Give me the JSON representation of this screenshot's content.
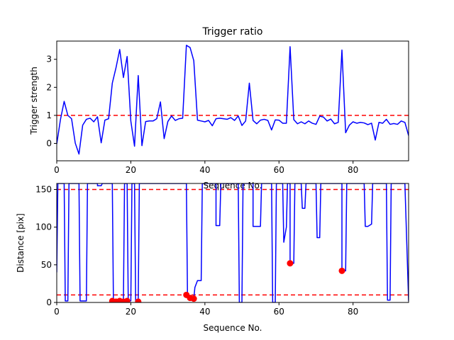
{
  "chart_data": [
    {
      "type": "line",
      "title": "Trigger ratio",
      "xlabel": "Sequence No.",
      "ylabel": "Trigger strength",
      "xlim": [
        0,
        95
      ],
      "ylim": [
        -0.62,
        3.65
      ],
      "xticks": [
        0,
        20,
        40,
        60,
        80
      ],
      "yticks": [
        0,
        1,
        2,
        3
      ],
      "threshold_lines": [
        {
          "y": 1.0,
          "color": "#ff0000",
          "style": "dashed"
        }
      ],
      "series": [
        {
          "color": "#0000ff",
          "points": [
            [
              0,
              -0.02
            ],
            [
              1,
              0.85
            ],
            [
              2,
              1.5
            ],
            [
              3,
              1.0
            ],
            [
              4,
              0.88
            ],
            [
              5,
              0.01
            ],
            [
              6,
              -0.38
            ],
            [
              7,
              0.65
            ],
            [
              8,
              0.86
            ],
            [
              9,
              0.9
            ],
            [
              10,
              0.77
            ],
            [
              11,
              0.95
            ],
            [
              12,
              0.02
            ],
            [
              13,
              0.83
            ],
            [
              14,
              0.88
            ],
            [
              15,
              2.15
            ],
            [
              16,
              2.7
            ],
            [
              17,
              3.35
            ],
            [
              18,
              2.35
            ],
            [
              19,
              3.1
            ],
            [
              20,
              0.8
            ],
            [
              21,
              -0.1
            ],
            [
              22,
              2.42
            ],
            [
              23,
              -0.08
            ],
            [
              24,
              0.78
            ],
            [
              25,
              0.8
            ],
            [
              26,
              0.8
            ],
            [
              27,
              0.88
            ],
            [
              28,
              1.48
            ],
            [
              29,
              0.17
            ],
            [
              30,
              0.78
            ],
            [
              31,
              0.98
            ],
            [
              32,
              0.82
            ],
            [
              33,
              0.88
            ],
            [
              34,
              0.9
            ],
            [
              35,
              3.5
            ],
            [
              36,
              3.42
            ],
            [
              37,
              2.95
            ],
            [
              38,
              0.83
            ],
            [
              39,
              0.8
            ],
            [
              40,
              0.77
            ],
            [
              41,
              0.82
            ],
            [
              42,
              0.63
            ],
            [
              43,
              0.88
            ],
            [
              44,
              0.9
            ],
            [
              45,
              0.88
            ],
            [
              46,
              0.86
            ],
            [
              47,
              0.92
            ],
            [
              48,
              0.82
            ],
            [
              49,
              0.98
            ],
            [
              50,
              0.64
            ],
            [
              51,
              0.8
            ],
            [
              52,
              2.15
            ],
            [
              53,
              0.82
            ],
            [
              54,
              0.7
            ],
            [
              55,
              0.83
            ],
            [
              56,
              0.86
            ],
            [
              57,
              0.82
            ],
            [
              58,
              0.48
            ],
            [
              59,
              0.84
            ],
            [
              60,
              0.83
            ],
            [
              61,
              0.72
            ],
            [
              62,
              0.72
            ],
            [
              63,
              3.45
            ],
            [
              64,
              0.85
            ],
            [
              65,
              0.7
            ],
            [
              66,
              0.77
            ],
            [
              67,
              0.7
            ],
            [
              68,
              0.8
            ],
            [
              69,
              0.72
            ],
            [
              70,
              0.68
            ],
            [
              71,
              0.97
            ],
            [
              72,
              0.94
            ],
            [
              73,
              0.8
            ],
            [
              74,
              0.87
            ],
            [
              75,
              0.7
            ],
            [
              76,
              0.75
            ],
            [
              77,
              3.33
            ],
            [
              78,
              0.38
            ],
            [
              79,
              0.65
            ],
            [
              80,
              0.77
            ],
            [
              81,
              0.72
            ],
            [
              82,
              0.75
            ],
            [
              83,
              0.73
            ],
            [
              84,
              0.67
            ],
            [
              85,
              0.72
            ],
            [
              86,
              0.12
            ],
            [
              87,
              0.75
            ],
            [
              88,
              0.72
            ],
            [
              89,
              0.86
            ],
            [
              90,
              0.68
            ],
            [
              91,
              0.71
            ],
            [
              92,
              0.68
            ],
            [
              93,
              0.8
            ],
            [
              94,
              0.75
            ],
            [
              95,
              0.28
            ]
          ]
        }
      ]
    },
    {
      "type": "line",
      "title": "",
      "xlabel": "Sequence No.",
      "ylabel": "Distance [pix]",
      "xlim": [
        0,
        95
      ],
      "ylim": [
        0,
        158
      ],
      "xticks": [
        0,
        20,
        40,
        60,
        80
      ],
      "yticks": [
        0,
        50,
        100,
        150
      ],
      "threshold_lines": [
        {
          "y": 150,
          "color": "#ff0000",
          "style": "dashed"
        },
        {
          "y": 10,
          "color": "#ff0000",
          "style": "dashed"
        }
      ],
      "series": [
        {
          "color": "#0000ff",
          "points": [
            [
              0,
              40
            ],
            [
              0.3,
              158
            ],
            [
              1,
              158
            ],
            [
              2,
              158
            ],
            [
              2.3,
              2
            ],
            [
              3,
              2
            ],
            [
              3.3,
              158
            ],
            [
              4,
              158
            ],
            [
              5,
              158
            ],
            [
              6,
              158
            ],
            [
              6.3,
              2
            ],
            [
              7,
              2
            ],
            [
              8,
              2
            ],
            [
              8.3,
              158
            ],
            [
              9,
              158
            ],
            [
              10,
              158
            ],
            [
              11,
              158
            ],
            [
              11,
              155
            ],
            [
              12,
              155
            ],
            [
              12.3,
              158
            ],
            [
              13,
              158
            ],
            [
              14,
              158
            ],
            [
              15,
              158
            ],
            [
              15.3,
              2
            ],
            [
              16,
              2
            ],
            [
              17,
              2
            ],
            [
              18,
              2
            ],
            [
              18.3,
              158
            ],
            [
              19,
              158
            ],
            [
              19.3,
              2
            ],
            [
              20,
              2
            ],
            [
              20.3,
              158
            ],
            [
              21,
              158
            ],
            [
              21.3,
              2
            ],
            [
              22,
              2
            ],
            [
              22.3,
              158
            ],
            [
              23,
              158
            ],
            [
              24,
              158
            ],
            [
              25,
              158
            ],
            [
              26,
              158
            ],
            [
              27,
              158
            ],
            [
              28,
              158
            ],
            [
              29,
              158
            ],
            [
              30,
              158
            ],
            [
              31,
              158
            ],
            [
              32,
              158
            ],
            [
              33,
              158
            ],
            [
              34,
              158
            ],
            [
              35,
              158
            ],
            [
              35.3,
              10
            ],
            [
              36,
              5
            ],
            [
              37,
              5
            ],
            [
              37.3,
              20
            ],
            [
              38,
              29
            ],
            [
              39,
              29
            ],
            [
              39.3,
              158
            ],
            [
              40,
              158
            ],
            [
              41,
              158
            ],
            [
              42,
              158
            ],
            [
              43,
              158
            ],
            [
              43,
              102
            ],
            [
              44,
              102
            ],
            [
              44.3,
              158
            ],
            [
              45,
              158
            ],
            [
              46,
              158
            ],
            [
              47,
              158
            ],
            [
              48,
              158
            ],
            [
              49,
              158
            ],
            [
              49.3,
              0
            ],
            [
              50,
              0
            ],
            [
              50.3,
              158
            ],
            [
              51,
              158
            ],
            [
              52,
              158
            ],
            [
              53,
              158
            ],
            [
              53,
              101
            ],
            [
              54,
              101
            ],
            [
              55,
              101
            ],
            [
              55.3,
              158
            ],
            [
              56,
              158
            ],
            [
              57,
              158
            ],
            [
              58,
              158
            ],
            [
              58.3,
              0
            ],
            [
              59,
              0
            ],
            [
              59.3,
              158
            ],
            [
              60,
              158
            ],
            [
              61,
              158
            ],
            [
              61.3,
              80
            ],
            [
              62,
              100
            ],
            [
              62.3,
              158
            ],
            [
              63,
              158
            ],
            [
              63,
              52
            ],
            [
              64,
              52
            ],
            [
              64.3,
              158
            ],
            [
              65,
              158
            ],
            [
              66,
              158
            ],
            [
              66.3,
              125
            ],
            [
              67,
              125
            ],
            [
              67.3,
              158
            ],
            [
              68,
              158
            ],
            [
              69,
              158
            ],
            [
              70,
              158
            ],
            [
              70.3,
              86
            ],
            [
              71,
              86
            ],
            [
              71.3,
              158
            ],
            [
              72,
              158
            ],
            [
              73,
              158
            ],
            [
              74,
              158
            ],
            [
              75,
              158
            ],
            [
              76,
              158
            ],
            [
              77,
              158
            ],
            [
              77,
              42
            ],
            [
              78,
              42
            ],
            [
              78.3,
              158
            ],
            [
              79,
              158
            ],
            [
              80,
              158
            ],
            [
              81,
              158
            ],
            [
              82,
              158
            ],
            [
              83,
              158
            ],
            [
              83.3,
              101
            ],
            [
              84,
              101
            ],
            [
              85,
              104
            ],
            [
              85.3,
              158
            ],
            [
              86,
              158
            ],
            [
              87,
              158
            ],
            [
              88,
              158
            ],
            [
              89,
              158
            ],
            [
              89.3,
              3
            ],
            [
              90,
              3
            ],
            [
              90.3,
              158
            ],
            [
              91,
              158
            ],
            [
              92,
              158
            ],
            [
              93,
              158
            ],
            [
              94,
              158
            ],
            [
              95,
              2
            ]
          ]
        }
      ],
      "markers": {
        "color": "#ff0000",
        "points": [
          [
            15,
            2
          ],
          [
            16,
            1
          ],
          [
            17,
            2
          ],
          [
            18,
            1
          ],
          [
            19,
            2
          ],
          [
            22,
            1
          ],
          [
            35,
            10
          ],
          [
            36,
            6
          ],
          [
            37,
            5
          ],
          [
            63,
            52
          ],
          [
            77,
            42
          ]
        ]
      }
    }
  ]
}
